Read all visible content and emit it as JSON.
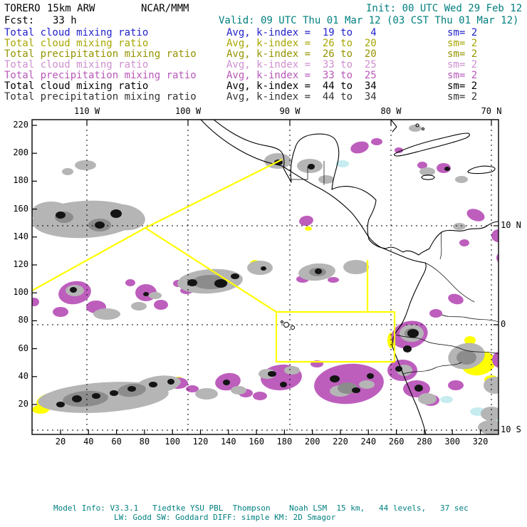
{
  "colors": {
    "teal": "#007f7f",
    "blue": "#2222cc",
    "olive_cloud": "#a6a600",
    "olive_precip": "#949400",
    "violet_cloud": "#cf8fcf",
    "violet_precip": "#b857b8",
    "black_cloud": "#000000",
    "black_precip": "#333333",
    "map_cloud": "#b5b5b5",
    "map_cloud_dense": "#8c8c8c",
    "map_core": "#141414",
    "map_precip": "#bd5ebd",
    "map_yellow": "#ffff00",
    "map_cyan": "#c6ecf0",
    "coast": "#000000"
  },
  "header": {
    "model": "TORERO",
    "resolution": "15km ARW",
    "center": "NCAR/MMM",
    "init": "Init: 00 UTC Wed 29 Feb 12",
    "fcst_label": "Fcst:",
    "fcst_value": "33 h",
    "valid": "Valid: 09 UTC Thu 01 Mar 12 (03 CST Thu 01 Mar 12)"
  },
  "legend": {
    "rows": [
      {
        "label": "Total cloud mixing ratio",
        "stat": "Avg, k-index =  19 to   4",
        "sm": "sm= 2",
        "color": "#2222cc"
      },
      {
        "label": "Total cloud mixing ratio",
        "stat": "Avg, k-index =  26 to  20",
        "sm": "sm= 2",
        "color": "#a6a600"
      },
      {
        "label": "Total precipitation mixing ratio",
        "stat": "Avg, k-index =  26 to  20",
        "sm": "sm= 2",
        "color": "#949400"
      },
      {
        "label": "Total cloud mixing ratio",
        "stat": "Avg, k-index =  33 to  25",
        "sm": "sm= 2",
        "color": "#cf8fcf"
      },
      {
        "label": "Total precipitation mixing ratio",
        "stat": "Avg, k-index =  33 to  25",
        "sm": "sm= 2",
        "color": "#b857b8"
      },
      {
        "label": "Total cloud mixing ratio",
        "stat": "Avg, k-index =  44 to  34",
        "sm": "sm= 2",
        "color": "#000000"
      },
      {
        "label": "Total precipitation mixing ratio",
        "stat": "Avg, k-index =  44 to  34",
        "sm": "sm= 2",
        "color": "#333333"
      }
    ]
  },
  "map": {
    "top_labels": [
      "110 W",
      "100 W",
      "90 W",
      "80 W",
      "70 N"
    ],
    "right_labels": [
      "10 N",
      "0",
      "10 S"
    ],
    "left_labels": [
      "220",
      "200",
      "180",
      "160",
      "140",
      "120",
      "100",
      "80",
      "60",
      "40",
      "20"
    ],
    "bottom_labels": [
      "20",
      "40",
      "60",
      "80",
      "100",
      "120",
      "140",
      "160",
      "180",
      "200",
      "220",
      "240",
      "260",
      "280",
      "300",
      "320"
    ]
  },
  "footer": {
    "line1": "Model Info: V3.3.1   Tiedtke YSU PBL  Thompson    Noah LSM  15 km,   44 levels,   37 sec",
    "line2": "LW: Godd SW: Goddard DIFF: simple KM: 2D Smagor"
  }
}
